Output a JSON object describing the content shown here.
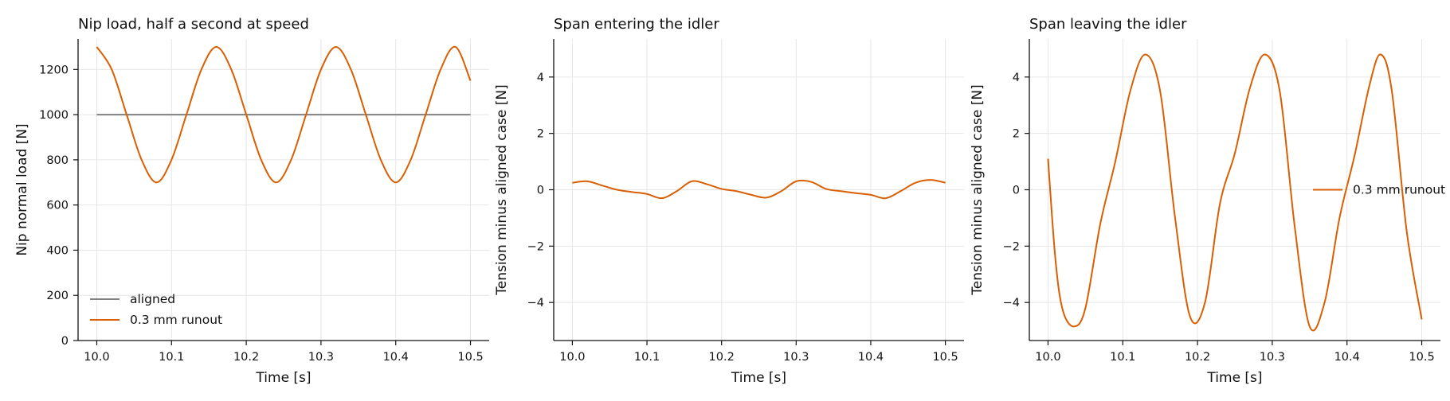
{
  "chart_data": [
    {
      "type": "line",
      "title": "Nip load, half a second at speed",
      "xlabel": "Time [s]",
      "ylabel": "Nip normal load [N]",
      "xlim": [
        9.975,
        10.525
      ],
      "ylim": [
        0,
        1335
      ],
      "x_ticks": [
        "10.0",
        "10.1",
        "10.2",
        "10.3",
        "10.4",
        "10.5"
      ],
      "y_ticks": [
        "0",
        "200",
        "400",
        "600",
        "800",
        "1000",
        "1200"
      ],
      "grid": true,
      "legend": "lower-left",
      "series": [
        {
          "name": "aligned",
          "color": "#808080",
          "x": [
            10.0,
            10.5
          ],
          "y": [
            1000,
            1000
          ]
        },
        {
          "name": "0.3 mm runout",
          "color": "#d95f02",
          "x": [
            10.0,
            10.02,
            10.04,
            10.06,
            10.08,
            10.1,
            10.12,
            10.14,
            10.16,
            10.18,
            10.2,
            10.22,
            10.24,
            10.26,
            10.28,
            10.3,
            10.32,
            10.34,
            10.36,
            10.38,
            10.4,
            10.42,
            10.44,
            10.46,
            10.48,
            10.5
          ],
          "y": [
            1300,
            1200,
            1000,
            800,
            700,
            800,
            1000,
            1200,
            1300,
            1200,
            1000,
            800,
            700,
            800,
            1000,
            1200,
            1300,
            1200,
            1000,
            800,
            700,
            800,
            1000,
            1200,
            1300,
            1150
          ]
        }
      ]
    },
    {
      "type": "line",
      "title": "Span entering the idler",
      "xlabel": "Time [s]",
      "ylabel": "Tension minus aligned case [N]",
      "xlim": [
        9.975,
        10.525
      ],
      "ylim": [
        -5.35,
        5.35
      ],
      "x_ticks": [
        "10.0",
        "10.1",
        "10.2",
        "10.3",
        "10.4",
        "10.5"
      ],
      "y_ticks": [
        "−4",
        "−2",
        "0",
        "2",
        "4"
      ],
      "grid": true,
      "series": [
        {
          "color": "#d95f02",
          "x": [
            10.0,
            10.02,
            10.04,
            10.06,
            10.08,
            10.1,
            10.12,
            10.14,
            10.16,
            10.18,
            10.2,
            10.22,
            10.24,
            10.26,
            10.28,
            10.3,
            10.32,
            10.34,
            10.36,
            10.38,
            10.4,
            10.42,
            10.44,
            10.46,
            10.48,
            10.5
          ],
          "y": [
            0.25,
            0.3,
            0.15,
            0.0,
            -0.08,
            -0.15,
            -0.3,
            -0.05,
            0.3,
            0.2,
            0.03,
            -0.05,
            -0.18,
            -0.28,
            -0.05,
            0.3,
            0.28,
            0.03,
            -0.05,
            -0.12,
            -0.18,
            -0.3,
            -0.05,
            0.25,
            0.35,
            0.25
          ]
        }
      ]
    },
    {
      "type": "line",
      "title": "Span leaving the idler",
      "xlabel": "Time [s]",
      "ylabel": "Tension minus aligned case [N]",
      "xlim": [
        9.975,
        10.525
      ],
      "ylim": [
        -5.35,
        5.35
      ],
      "x_ticks": [
        "10.0",
        "10.1",
        "10.2",
        "10.3",
        "10.4",
        "10.5"
      ],
      "y_ticks": [
        "−4",
        "−2",
        "0",
        "2",
        "4"
      ],
      "grid": true,
      "legend": "center-right",
      "series": [
        {
          "name": "0.3 mm runout",
          "color": "#d95f02",
          "x": [
            10.0,
            10.01,
            10.02,
            10.035,
            10.05,
            10.07,
            10.09,
            10.11,
            10.13,
            10.15,
            10.17,
            10.19,
            10.21,
            10.23,
            10.25,
            10.27,
            10.29,
            10.31,
            10.33,
            10.35,
            10.37,
            10.39,
            10.41,
            10.43,
            10.445,
            10.46,
            10.48,
            10.5
          ],
          "y": [
            1.1,
            -2.5,
            -4.3,
            -4.85,
            -4.2,
            -1.2,
            1.0,
            3.5,
            4.8,
            3.5,
            -1.0,
            -4.5,
            -4.0,
            -0.5,
            1.3,
            3.6,
            4.8,
            3.5,
            -1.3,
            -4.85,
            -4.0,
            -1.0,
            1.2,
            3.7,
            4.8,
            3.5,
            -1.5,
            -4.6
          ]
        }
      ]
    }
  ]
}
